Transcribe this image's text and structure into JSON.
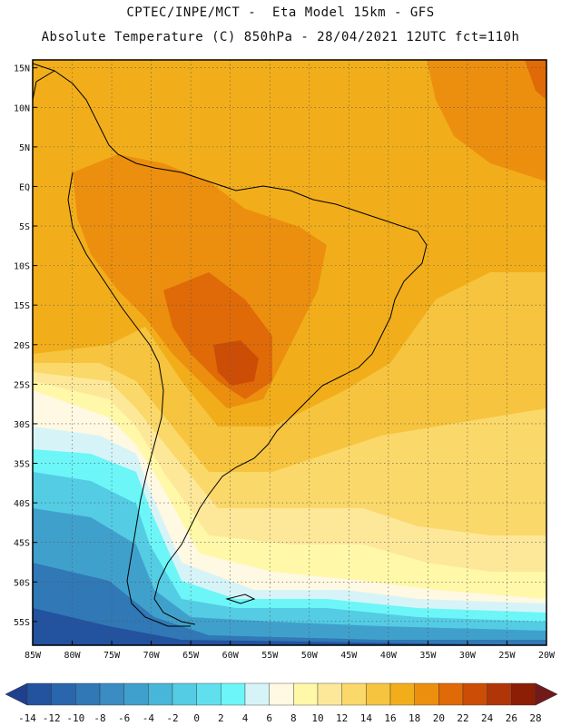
{
  "header": {
    "line1": "CPTEC/INPE/MCT -  Eta Model 15km - GFS",
    "line2": "Absolute Temperature (C) 850hPa - 28/04/2021 12UTC fct=110h"
  },
  "axes": {
    "lat_labels": [
      "15N",
      "10N",
      "5N",
      "EQ",
      "5S",
      "10S",
      "15S",
      "20S",
      "25S",
      "30S",
      "35S",
      "40S",
      "45S",
      "50S",
      "55S"
    ],
    "lon_labels": [
      "85W",
      "80W",
      "75W",
      "70W",
      "65W",
      "60W",
      "55W",
      "50W",
      "45W",
      "40W",
      "35W",
      "30W",
      "25W",
      "20W"
    ],
    "lon_range": [
      -85,
      -20
    ],
    "lat_range": [
      -58,
      16
    ]
  },
  "colorbar": {
    "labels": [
      "-14",
      "-12",
      "-10",
      "-8",
      "-6",
      "-4",
      "-2",
      "0",
      "2",
      "4",
      "6",
      "8",
      "10",
      "12",
      "14",
      "16",
      "18",
      "20",
      "22",
      "24",
      "26",
      "28"
    ],
    "colors": [
      "#1f3f8f",
      "#23529f",
      "#2a66ad",
      "#3078b6",
      "#3a8cc2",
      "#40a0cc",
      "#48b6d8",
      "#54cce4",
      "#60e0ee",
      "#6cf6f8",
      "#d6f4f8",
      "#fff8e2",
      "#fff8a8",
      "#fde89a",
      "#fbd86a",
      "#f6c43e",
      "#f2ae1a",
      "#ec8f0e",
      "#e06a08",
      "#cc4e06",
      "#b03608",
      "#8c1e06",
      "#701a1a"
    ],
    "unit": "C"
  }
}
